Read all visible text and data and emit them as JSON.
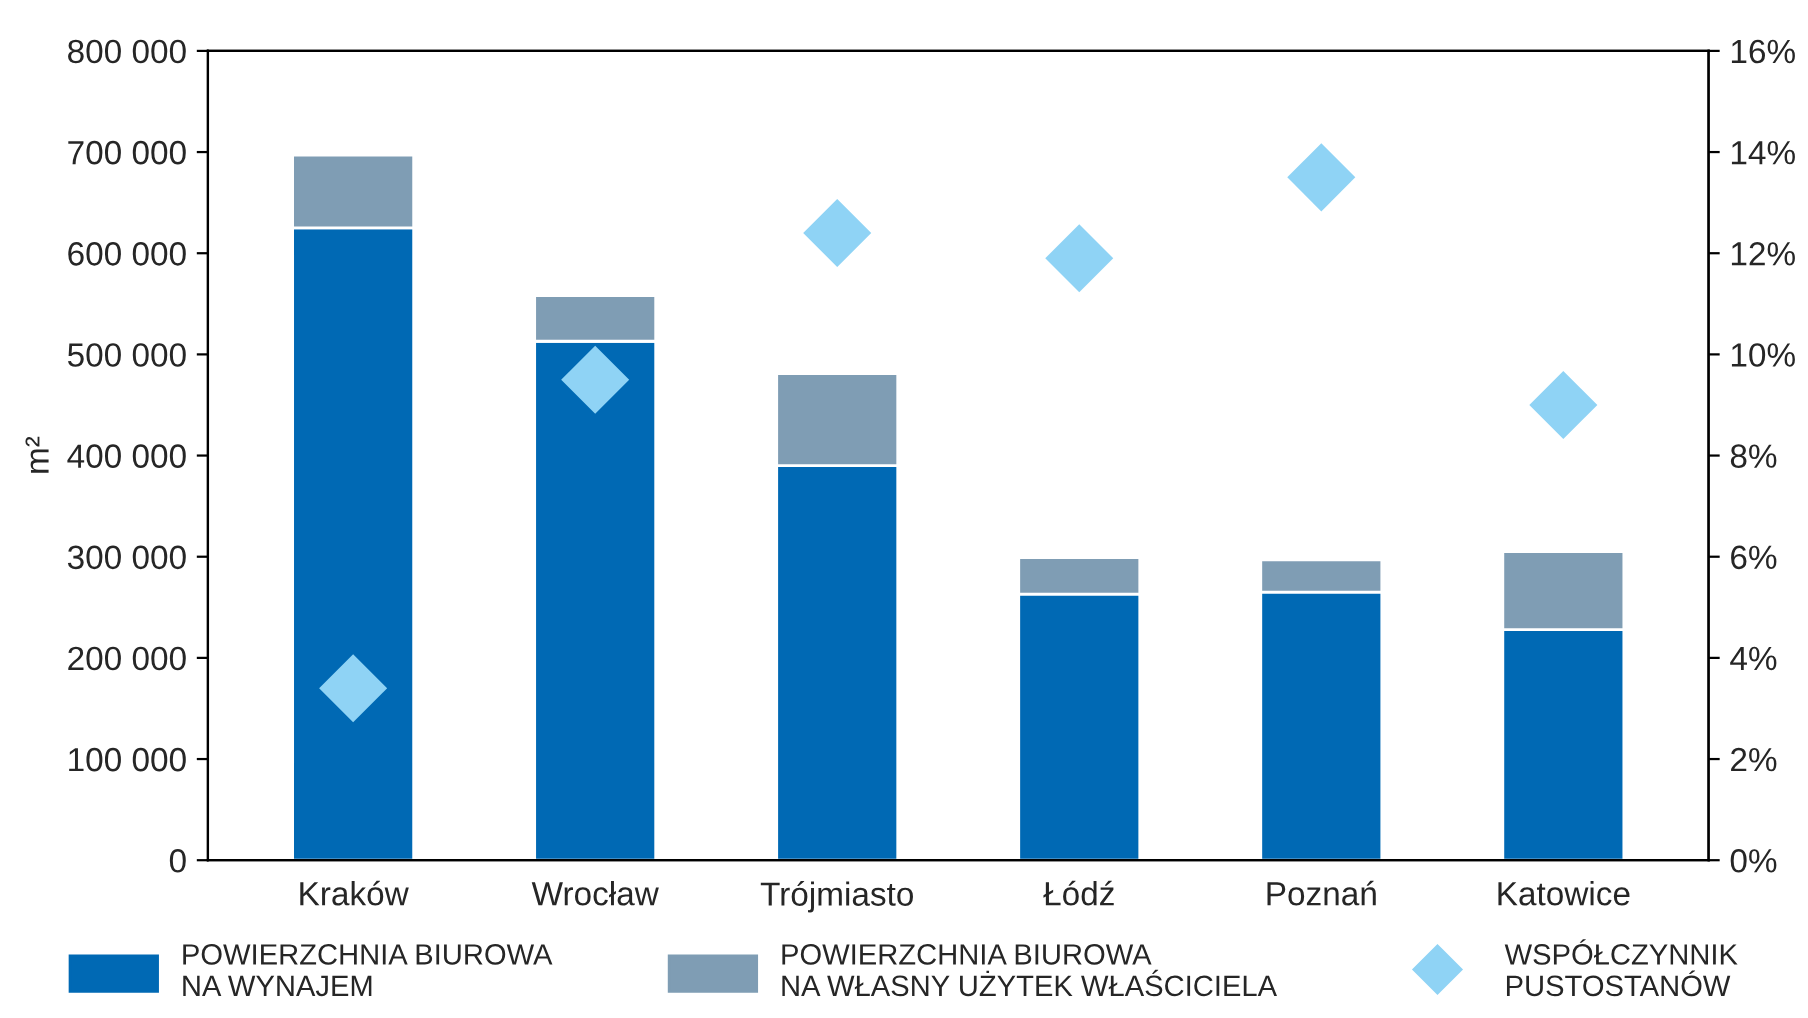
{
  "chart_data": {
    "type": "bar",
    "stacked": true,
    "ylabel": "m²",
    "categories": [
      "Kraków",
      "Wrocław",
      "Trójmiasto",
      "Łódź",
      "Poznań",
      "Katowice"
    ],
    "series": [
      {
        "name": "POWIERZCHNIA BIUROWA\nNA WYNAJEM",
        "color": "#0069b4",
        "values": [
          625000,
          513000,
          390000,
          263000,
          265000,
          228000
        ]
      },
      {
        "name": "POWIERZCHNIA BIUROWA\nNA WŁASNY UŻYTEK WŁAŚCICIELA",
        "color": "#7f9db4",
        "values": [
          72000,
          45000,
          91000,
          36000,
          32000,
          77000
        ]
      },
      {
        "name": "WSPÓŁCZYNNIK\nPUSTOSTANÓW",
        "color": "#8fd3f5",
        "type": "scatter",
        "axis": "y2",
        "marker": "diamond",
        "values": [
          3.4,
          9.5,
          12.4,
          11.9,
          13.5,
          9.0
        ]
      }
    ],
    "ylim": [
      0,
      800000
    ],
    "yticks": [
      0,
      {
        "value": 100000,
        "label": "100 000"
      },
      {
        "value": 200000,
        "label": "200 000"
      },
      {
        "value": 300000,
        "label": "300 000"
      },
      {
        "value": 400000,
        "label": "400 000"
      },
      {
        "value": 500000,
        "label": "500 000"
      },
      {
        "value": 600000,
        "label": "600 000"
      },
      {
        "value": 700000,
        "label": "700 000"
      },
      {
        "value": 800000,
        "label": "800 000"
      }
    ],
    "y2lim": [
      0,
      16
    ],
    "y2ticks": [
      {
        "value": 0,
        "label": "0%"
      },
      {
        "value": 2,
        "label": "2%"
      },
      {
        "value": 4,
        "label": "4%"
      },
      {
        "value": 6,
        "label": "6%"
      },
      {
        "value": 8,
        "label": "8%"
      },
      {
        "value": 10,
        "label": "10%"
      },
      {
        "value": 12,
        "label": "12%"
      },
      {
        "value": 14,
        "label": "14%"
      },
      {
        "value": 16,
        "label": "16%"
      }
    ],
    "grid": false,
    "legend": "bottom"
  }
}
